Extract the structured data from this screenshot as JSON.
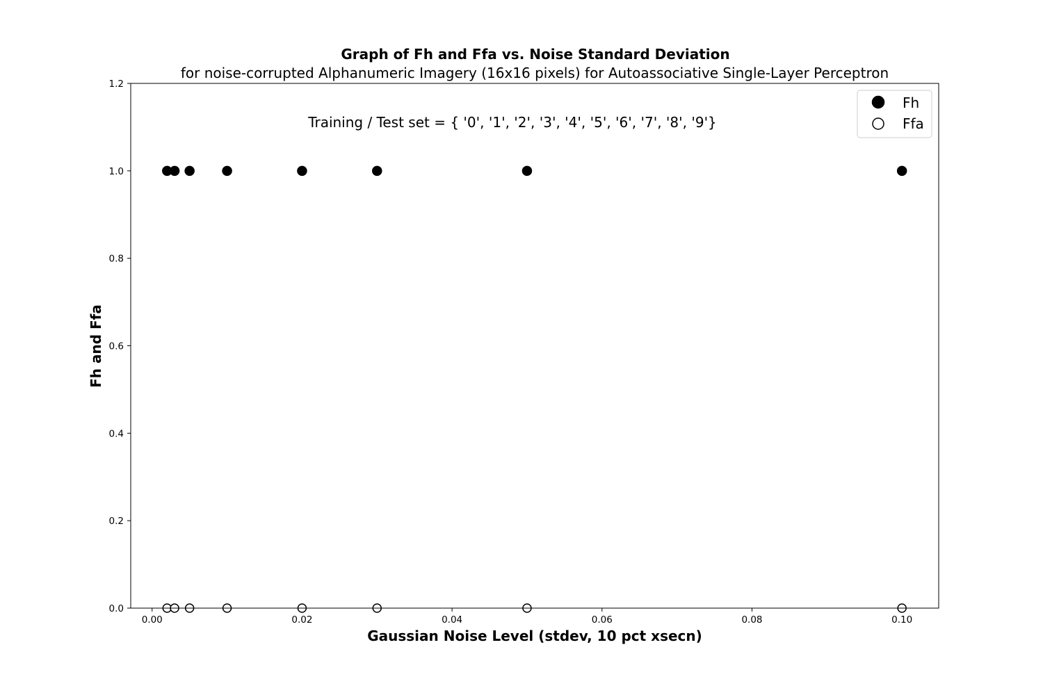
{
  "chart_data": {
    "type": "scatter",
    "title": "Graph of Fh and Ffa vs.  Noise Standard Deviation",
    "subtitle": "for noise-corrupted Alphanumeric Imagery (16x16 pixels) for Autoassociative Single-Layer Perceptron",
    "xlabel": "Gaussian Noise Level (stdev,  10 pct xsecn)",
    "ylabel": "Fh and Ffa",
    "annotation": "Training / Test set = { '0', '1', '2', '3', '4', '5', '6', '7', '8', '9'}",
    "xlim": [
      -0.00285,
      0.1049
    ],
    "ylim": [
      0,
      1.2
    ],
    "x_ticks": [
      0.0,
      0.02,
      0.04,
      0.06,
      0.08,
      0.1
    ],
    "x_tick_labels": [
      "0.00",
      "0.02",
      "0.04",
      "0.06",
      "0.08",
      "0.10"
    ],
    "y_ticks": [
      0.0,
      0.2,
      0.4,
      0.6,
      0.8,
      1.0,
      1.2
    ],
    "y_tick_labels": [
      "0.0",
      "0.2",
      "0.4",
      "0.6",
      "0.8",
      "1.0",
      "1.2"
    ],
    "grid": false,
    "legend_position": "top-right",
    "series": [
      {
        "name": "Fh",
        "marker": "filled-circle",
        "color": "#000000",
        "x": [
          0.002,
          0.003,
          0.005,
          0.01,
          0.02,
          0.03,
          0.05,
          0.1
        ],
        "y": [
          1,
          1,
          1,
          1,
          1,
          1,
          1,
          1
        ]
      },
      {
        "name": "Ffa",
        "marker": "open-circle",
        "color": "#000000",
        "x": [
          0.002,
          0.003,
          0.005,
          0.01,
          0.02,
          0.03,
          0.05,
          0.1
        ],
        "y": [
          0,
          0,
          0,
          0,
          0,
          0,
          0,
          0
        ]
      }
    ]
  }
}
